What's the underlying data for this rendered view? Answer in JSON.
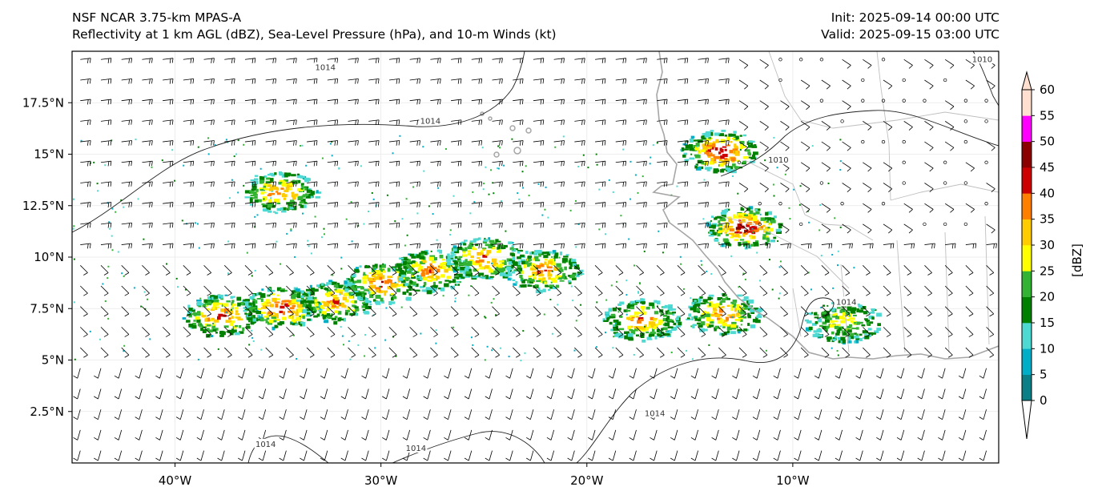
{
  "header": {
    "model": "NSF NCAR 3.75-km MPAS-A",
    "fields": "Reflectivity at 1 km AGL (dBZ), Sea-Level Pressure (hPa), and 10-m Winds (kt)",
    "init": "Init: 2025-09-14 00:00 UTC",
    "valid": "Valid: 2025-09-15 03:00 UTC"
  },
  "map": {
    "lon_range": [
      -45,
      0
    ],
    "lat_range": [
      0,
      20
    ],
    "x_ticks": [
      {
        "lon": -40,
        "label": "40°W"
      },
      {
        "lon": -30,
        "label": "30°W"
      },
      {
        "lon": -20,
        "label": "20°W"
      },
      {
        "lon": -10,
        "label": "10°W"
      }
    ],
    "y_ticks": [
      {
        "lat": 17.5,
        "label": "17.5°N"
      },
      {
        "lat": 15,
        "label": "15°N"
      },
      {
        "lat": 12.5,
        "label": "12.5°N"
      },
      {
        "lat": 10,
        "label": "10°N"
      },
      {
        "lat": 7.5,
        "label": "7.5°N"
      },
      {
        "lat": 5,
        "label": "5°N"
      },
      {
        "lat": 2.5,
        "label": "2.5°N"
      }
    ],
    "isobar_labels": [
      {
        "text": "1014",
        "lon": -27.6,
        "lat": 16.6
      },
      {
        "text": "1014",
        "lon": -32.7,
        "lat": 19.2
      },
      {
        "text": "1010",
        "lon": -10.7,
        "lat": 14.7
      },
      {
        "text": "1010",
        "lon": -0.8,
        "lat": 19.6
      },
      {
        "text": "1014",
        "lon": -7.4,
        "lat": 7.8
      },
      {
        "text": "1014",
        "lon": -16.7,
        "lat": 2.4
      },
      {
        "text": "1014",
        "lon": -35.6,
        "lat": 0.9
      },
      {
        "text": "1014",
        "lon": -28.3,
        "lat": 0.7
      }
    ],
    "reflectivity_clusters": [
      {
        "lon": -37.8,
        "lat": 7.2,
        "max_dbz": 45
      },
      {
        "lon": -34.9,
        "lat": 7.6,
        "max_dbz": 45
      },
      {
        "lon": -32.3,
        "lat": 7.9,
        "max_dbz": 40
      },
      {
        "lon": -30.0,
        "lat": 8.8,
        "max_dbz": 45
      },
      {
        "lon": -27.6,
        "lat": 9.4,
        "max_dbz": 40
      },
      {
        "lon": -25.0,
        "lat": 10.0,
        "max_dbz": 40
      },
      {
        "lon": -22.2,
        "lat": 9.4,
        "max_dbz": 40
      },
      {
        "lon": -35.0,
        "lat": 13.2,
        "max_dbz": 40
      },
      {
        "lon": -17.4,
        "lat": 7.0,
        "max_dbz": 40
      },
      {
        "lon": -13.5,
        "lat": 7.3,
        "max_dbz": 40
      },
      {
        "lon": -13.6,
        "lat": 15.2,
        "max_dbz": 50
      },
      {
        "lon": -12.4,
        "lat": 11.5,
        "max_dbz": 50
      },
      {
        "lon": -7.6,
        "lat": 6.9,
        "max_dbz": 30
      }
    ]
  },
  "colorbar": {
    "label": "[dBZ]",
    "levels": [
      0,
      5,
      10,
      15,
      20,
      25,
      30,
      35,
      40,
      45,
      50,
      55,
      60
    ],
    "colors": [
      "#ffffff",
      "#0a7f86",
      "#00aec8",
      "#4fd9d3",
      "#008000",
      "#33b333",
      "#ffff00",
      "#ffcc00",
      "#ff8000",
      "#cc0000",
      "#8b0000",
      "#ff00ff",
      "#ffe0d0"
    ]
  }
}
